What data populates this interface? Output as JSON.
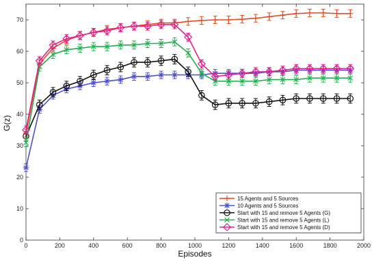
{
  "chart_data": {
    "type": "line",
    "title": "",
    "xlabel": "Episodes",
    "ylabel": "G(z)",
    "xlim": [
      0,
      2000
    ],
    "ylim": [
      0,
      75
    ],
    "xticks": [
      0,
      200,
      400,
      600,
      800,
      1000,
      1200,
      1400,
      1600,
      1800,
      2000
    ],
    "yticks": [
      0,
      10,
      20,
      30,
      40,
      50,
      60,
      70
    ],
    "grid": false,
    "legend_position": "bottom-right",
    "x": [
      0,
      80,
      160,
      240,
      320,
      400,
      480,
      560,
      640,
      720,
      800,
      880,
      960,
      1040,
      1120,
      1200,
      1280,
      1360,
      1440,
      1520,
      1600,
      1680,
      1760,
      1840,
      1920
    ],
    "series": [
      {
        "name": "15 Agents and 5 Sources",
        "color": "#e8491d",
        "marker": "plus",
        "values": [
          34,
          56,
          61,
          63.5,
          65,
          66,
          67,
          67.5,
          68,
          68.5,
          69,
          69,
          69.5,
          69.8,
          70,
          70,
          70.2,
          70.5,
          71,
          71.5,
          72,
          72.2,
          72.2,
          72,
          72
        ],
        "errors": [
          1.2,
          1.2,
          1.2,
          1.2,
          1.2,
          1.2,
          1.2,
          1.2,
          1.2,
          1.2,
          1.2,
          1.2,
          1.2,
          1.2,
          1.2,
          1.2,
          1.2,
          1.2,
          1.2,
          1.2,
          1.2,
          1.2,
          1.2,
          1.2,
          1.2
        ]
      },
      {
        "name": "10 Agents and 5 Sources",
        "color": "#4a4ed1",
        "marker": "star",
        "values": [
          23,
          41.5,
          46,
          48,
          49,
          50,
          50.5,
          51,
          52,
          52,
          52.5,
          52.5,
          52.5,
          52.5,
          53,
          53,
          53,
          53,
          53.5,
          53.5,
          54,
          54,
          54,
          54,
          54
        ],
        "errors": [
          1.2,
          1.2,
          1.2,
          1.2,
          1.2,
          1.2,
          1.2,
          1.2,
          1.2,
          1.2,
          1.2,
          1.2,
          1.2,
          1.2,
          1.2,
          1.2,
          1.2,
          1.2,
          1.2,
          1.2,
          1.2,
          1.2,
          1.2,
          1.2,
          1.2
        ]
      },
      {
        "name": "Start with 15 and remove 5 Agents (G)",
        "color": "#111111",
        "marker": "circle",
        "values": [
          33,
          43,
          47,
          49,
          50.5,
          52.5,
          54,
          55,
          56.5,
          56.5,
          57,
          57.5,
          53.5,
          46,
          43,
          43.5,
          43.5,
          43.5,
          44,
          44.5,
          45,
          45,
          45,
          45,
          45
        ],
        "errors": [
          1.5,
          1.5,
          1.5,
          1.5,
          1.5,
          1.5,
          1.5,
          1.5,
          1.5,
          1.5,
          1.5,
          1.5,
          1.5,
          1.5,
          1.5,
          1.5,
          1.5,
          1.5,
          1.5,
          1.5,
          1.5,
          1.5,
          1.5,
          1.5,
          1.5
        ]
      },
      {
        "name": "Start with 15 and remove 5 Agents (L)",
        "color": "#1fb04a",
        "marker": "x",
        "values": [
          31,
          55,
          59,
          60.5,
          61,
          61.5,
          61.5,
          62,
          62,
          62.5,
          62.5,
          63,
          59.5,
          53,
          50.5,
          50.5,
          50.5,
          50.5,
          51,
          51,
          51,
          51.5,
          51.5,
          51.5,
          51.5
        ],
        "errors": [
          1.3,
          1.3,
          1.3,
          1.3,
          1.3,
          1.3,
          1.3,
          1.3,
          1.3,
          1.3,
          1.3,
          1.3,
          1.3,
          1.3,
          1.3,
          1.3,
          1.3,
          1.3,
          1.3,
          1.3,
          1.3,
          1.3,
          1.3,
          1.3,
          1.3
        ]
      },
      {
        "name": "Start with 15 and remove 5 Agents (D)",
        "color": "#e0208f",
        "marker": "diamond",
        "values": [
          35,
          57,
          62,
          64,
          65,
          66,
          66.5,
          67.5,
          68,
          68,
          68.5,
          68.5,
          64.5,
          56,
          52,
          52.5,
          53,
          53.5,
          53.5,
          54,
          54.5,
          54.5,
          54.5,
          54.5,
          54.5
        ],
        "errors": [
          1.3,
          1.3,
          1.3,
          1.3,
          1.3,
          1.3,
          1.3,
          1.3,
          1.3,
          1.3,
          1.3,
          1.3,
          1.3,
          1.3,
          1.3,
          1.3,
          1.3,
          1.3,
          1.3,
          1.3,
          1.3,
          1.3,
          1.3,
          1.3,
          1.3
        ]
      }
    ]
  }
}
